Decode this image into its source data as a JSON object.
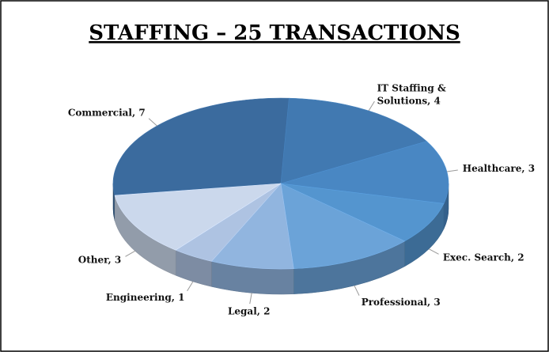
{
  "chart_data": {
    "type": "pie",
    "title": "STAFFING – 25 TRANSACTIONS",
    "values": [
      7,
      4,
      3,
      2,
      3,
      2,
      1,
      3
    ],
    "value_labels": [
      "Commercial, 7",
      "IT Staffing & Solutions, 4",
      "Healthcare, 3",
      "Exec. Search, 2",
      "Professional, 3",
      "Legal, 2",
      "Engineering, 1",
      "Other, 3"
    ],
    "colors": [
      "#3b6b9e",
      "#4179b1",
      "#4987c3",
      "#5495cf",
      "#6ba3d8",
      "#91b5df",
      "#aec3e2",
      "#cbd8ec"
    ]
  }
}
